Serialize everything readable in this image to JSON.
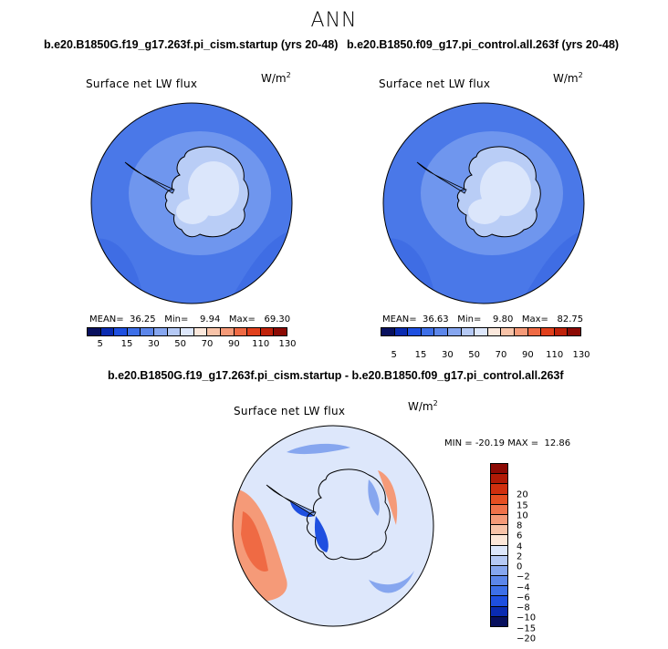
{
  "season": "ANN",
  "panels": [
    {
      "case": "b.e20.B1850G.f19_g17.263f.pi_cism.startup (yrs 20-48)",
      "variable": "Surface net LW flux",
      "units_base": "W/m",
      "units_exp": "2",
      "mean_label": "MEAN=",
      "mean": "36.25",
      "min_label": "Min=",
      "min": "9.94",
      "max_label": "Max=",
      "max": "69.30"
    },
    {
      "case": "b.e20.B1850.f09_g17.pi_control.all.263f (yrs 20-48)",
      "variable": "Surface net LW flux",
      "units_base": "W/m",
      "units_exp": "2",
      "mean_label": "MEAN=",
      "mean": "36.63",
      "min_label": "Min=",
      "min": "9.80",
      "max_label": "Max=",
      "max": "82.75"
    }
  ],
  "diff": {
    "title": "b.e20.B1850G.f19_g17.263f.pi_cism.startup - b.e20.B1850.f09_g17.pi_control.all.263f",
    "variable": "Surface net LW flux",
    "units_base": "W/m",
    "units_exp": "2",
    "min_label": "MIN =",
    "min": "-20.19",
    "max_label": "MAX =",
    "max": "12.86"
  },
  "colorbar_top": {
    "levels": [
      "5",
      "15",
      "30",
      "50",
      "70",
      "90",
      "110",
      "130"
    ],
    "colors": [
      "#08105e",
      "#0a2bb0",
      "#1e4fe0",
      "#3d6fe8",
      "#5c86ea",
      "#86a6ef",
      "#b5c9f5",
      "#dde7fb",
      "#fbe8dc",
      "#f8c3a8",
      "#f59a78",
      "#ef6a44",
      "#e1401c",
      "#c0220a",
      "#8c0a04"
    ]
  },
  "colorbar_diff": {
    "levels": [
      "20",
      "15",
      "10",
      "8",
      "6",
      "4",
      "2",
      "0",
      "−2",
      "−4",
      "−6",
      "−8",
      "−10",
      "−15",
      "−20"
    ],
    "colors": [
      "#8c0a04",
      "#b01a06",
      "#d02f0e",
      "#e64f22",
      "#f0724a",
      "#f59a78",
      "#f8c3a8",
      "#fde7d8",
      "#dde7fb",
      "#b5c9f5",
      "#86a6ef",
      "#5c86ea",
      "#3d6fe8",
      "#1e4fe0",
      "#0a2bb0",
      "#08105e"
    ]
  },
  "map_colors": {
    "ocean": "#4a78e8",
    "ocean_dark": "#3f6de4",
    "shelf": "#6f96ee",
    "ice_low": "#b9cdf6",
    "ice_high": "#dbe6fb",
    "coast": "#000000",
    "diff_bg": "#dde7fb",
    "diff_warm": "#f59a78",
    "diff_hot": "#ef6a44",
    "diff_cool": "#86a6ef",
    "diff_cold": "#1e4fe0"
  }
}
